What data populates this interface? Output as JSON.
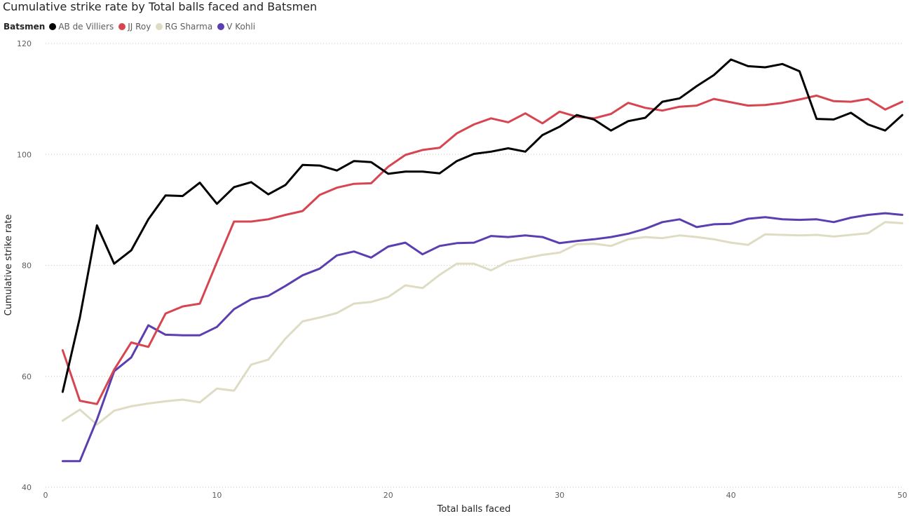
{
  "chart_data": {
    "type": "line",
    "title": "Cumulative strike rate by Total balls faced and Batsmen",
    "legend_title": "Batsmen",
    "xlabel": "Total balls faced",
    "ylabel": "Cumulative strike rate",
    "xlim": [
      0,
      50
    ],
    "ylim": [
      40,
      120
    ],
    "xticks": [
      0,
      10,
      20,
      30,
      40,
      50
    ],
    "yticks": [
      40,
      60,
      80,
      100,
      120
    ],
    "grid": "horizontal dotted",
    "legend_position": "top-left",
    "x": [
      1,
      2,
      3,
      4,
      5,
      6,
      7,
      8,
      9,
      10,
      11,
      12,
      13,
      14,
      15,
      16,
      17,
      18,
      19,
      20,
      21,
      22,
      23,
      24,
      25,
      26,
      27,
      28,
      29,
      30,
      31,
      32,
      33,
      34,
      35,
      36,
      37,
      38,
      39,
      40,
      41,
      42,
      43,
      44,
      45,
      46,
      47,
      48,
      49,
      50
    ],
    "series": [
      {
        "name": "AB de Villiers",
        "color": "#000000",
        "values": [
          57.2,
          70.6,
          87.2,
          80.3,
          82.7,
          88.3,
          92.6,
          92.5,
          94.9,
          91.1,
          94.1,
          95.0,
          92.8,
          94.5,
          98.1,
          98.0,
          97.1,
          98.8,
          98.6,
          96.5,
          96.9,
          96.9,
          96.6,
          98.8,
          100.1,
          100.5,
          101.1,
          100.5,
          103.5,
          105.0,
          107.1,
          106.3,
          104.3,
          106.0,
          106.6,
          109.5,
          110.1,
          112.3,
          114.3,
          117.1,
          115.9,
          115.7,
          116.3,
          115.0,
          106.4,
          106.3,
          107.5,
          105.4,
          104.3,
          107.1
        ]
      },
      {
        "name": "JJ Roy",
        "color": "#d64550",
        "values": [
          64.7,
          55.6,
          55.0,
          61.2,
          66.1,
          65.3,
          71.3,
          72.6,
          73.1,
          80.6,
          87.9,
          87.9,
          88.3,
          89.1,
          89.8,
          92.7,
          94.0,
          94.7,
          94.8,
          97.8,
          99.9,
          100.8,
          101.2,
          103.8,
          105.4,
          106.5,
          105.8,
          107.4,
          105.6,
          107.7,
          106.8,
          106.5,
          107.3,
          109.3,
          108.4,
          107.9,
          108.6,
          108.8,
          110.0,
          109.4,
          108.8,
          108.9,
          109.3,
          109.9,
          110.6,
          109.6,
          109.5,
          110.0,
          108.1,
          109.5
        ]
      },
      {
        "name": "RG Sharma",
        "color": "#dedcc3",
        "values": [
          52.0,
          54.0,
          51.3,
          53.8,
          54.6,
          55.1,
          55.5,
          55.8,
          55.3,
          57.8,
          57.4,
          62.1,
          63.0,
          66.8,
          69.9,
          70.6,
          71.4,
          73.1,
          73.4,
          74.3,
          76.4,
          75.9,
          78.3,
          80.3,
          80.3,
          79.1,
          80.7,
          81.3,
          81.9,
          82.3,
          83.8,
          83.9,
          83.5,
          84.7,
          85.1,
          84.9,
          85.4,
          85.1,
          84.7,
          84.1,
          83.7,
          85.6,
          85.5,
          85.4,
          85.5,
          85.2,
          85.5,
          85.8,
          87.8,
          87.6
        ]
      },
      {
        "name": "V Kohli",
        "color": "#5b3eb0",
        "values": [
          44.7,
          44.7,
          52.2,
          60.9,
          63.4,
          69.2,
          67.5,
          67.4,
          67.4,
          68.9,
          72.1,
          73.9,
          74.5,
          76.3,
          78.2,
          79.4,
          81.8,
          82.5,
          81.4,
          83.4,
          84.1,
          82.0,
          83.5,
          84.0,
          84.1,
          85.3,
          85.1,
          85.4,
          85.1,
          84.0,
          84.4,
          84.7,
          85.1,
          85.7,
          86.6,
          87.8,
          88.3,
          86.9,
          87.4,
          87.5,
          88.4,
          88.7,
          88.3,
          88.2,
          88.3,
          87.8,
          88.6,
          89.1,
          89.4,
          89.1
        ]
      }
    ]
  }
}
